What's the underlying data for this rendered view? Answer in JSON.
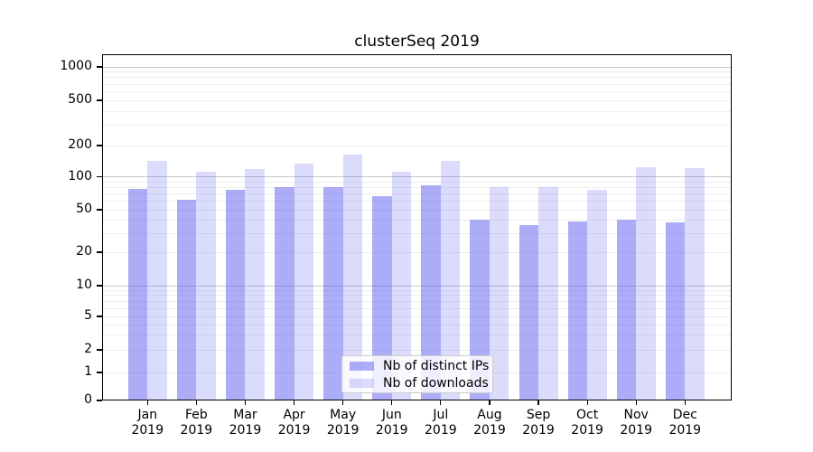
{
  "title": "clusterSeq 2019",
  "chart_data": {
    "type": "bar",
    "title": "clusterSeq 2019",
    "xlabel": "",
    "ylabel": "",
    "categories": [
      "Jan 2019",
      "Feb 2019",
      "Mar 2019",
      "Apr 2019",
      "May 2019",
      "Jun 2019",
      "Jul 2019",
      "Aug 2019",
      "Sep 2019",
      "Oct 2019",
      "Nov 2019",
      "Dec 2019"
    ],
    "series": [
      {
        "name": "Nb of distinct IPs",
        "fill": "rgba(92, 92, 240, 0.5)",
        "values": [
          78,
          62,
          76,
          80,
          80,
          66,
          84,
          40,
          36,
          39,
          40,
          38
        ]
      },
      {
        "name": "Nb of downloads",
        "fill": "rgba(92, 92, 240, 0.22)",
        "values": [
          141,
          112,
          118,
          134,
          165,
          112,
          143,
          80,
          80,
          76,
          123,
          122
        ]
      }
    ],
    "yscale": "symlog",
    "yticks": [
      0,
      1,
      2,
      5,
      10,
      20,
      50,
      100,
      200,
      500,
      1000
    ],
    "ylim": [
      0,
      1300
    ],
    "grid": true,
    "legend_position": "lower center"
  },
  "colors": {
    "major_grid": "#c8c8c8",
    "minor_grid": "#ededed",
    "spine": "#000000",
    "background": "#ffffff"
  }
}
